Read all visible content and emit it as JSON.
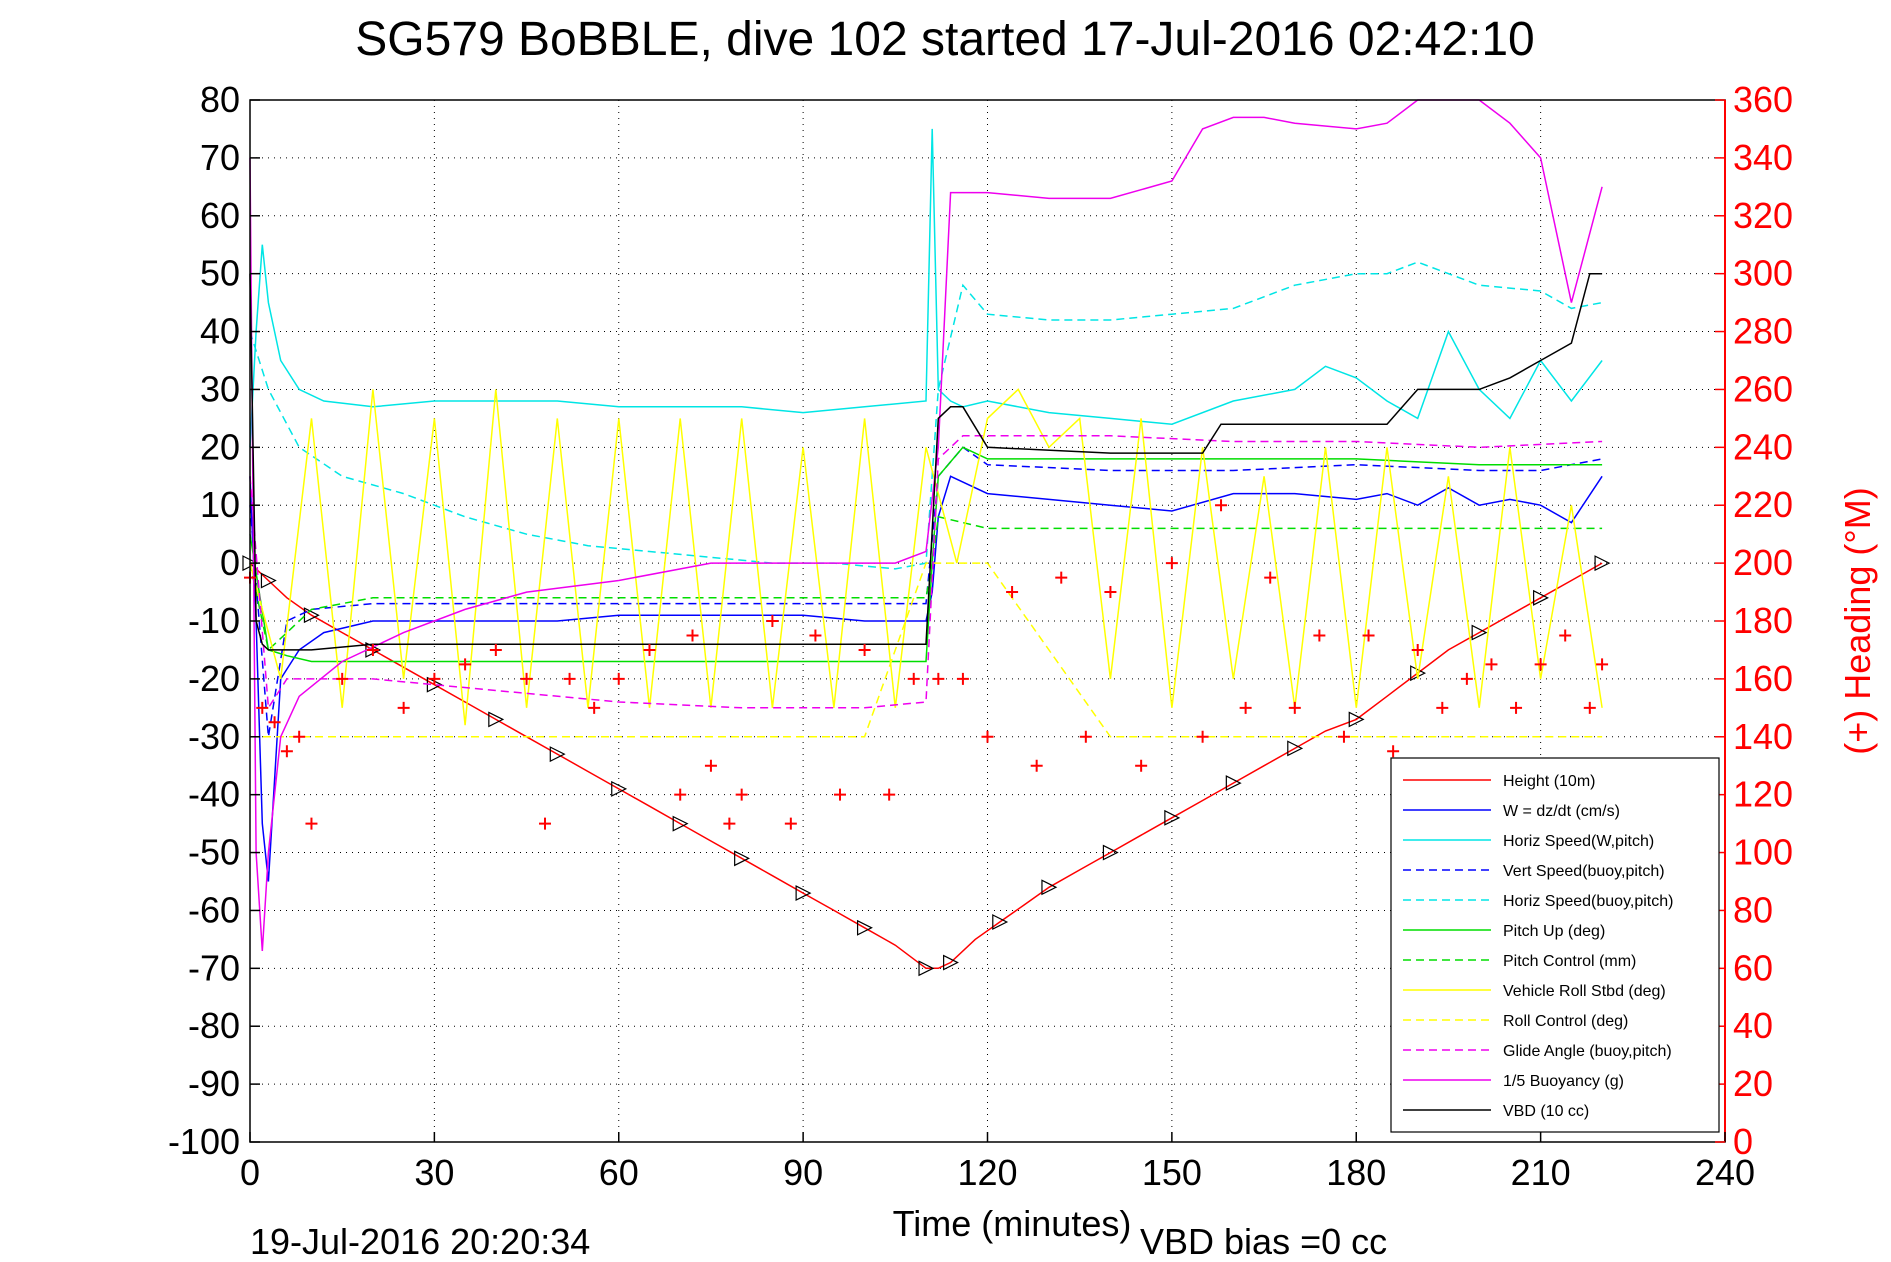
{
  "chart_data": {
    "type": "line",
    "title": "SG579 BoBBLE, dive 102 started 17-Jul-2016 02:42:10",
    "xlabel": "Time (minutes)",
    "ylabel_right": "(+) Heading (°M)",
    "xlim": [
      0,
      240
    ],
    "ylim": [
      -100,
      80
    ],
    "ylim_right": [
      0,
      360
    ],
    "x_ticks": [
      "0",
      "30",
      "60",
      "90",
      "120",
      "150",
      "180",
      "210",
      "240"
    ],
    "y_ticks": [
      "80",
      "70",
      "60",
      "50",
      "40",
      "30",
      "20",
      "10",
      "0",
      "-10",
      "-20",
      "-30",
      "-40",
      "-50",
      "-60",
      "-70",
      "-80",
      "-90",
      "-100"
    ],
    "y_ticks_right": [
      "360",
      "340",
      "320",
      "300",
      "280",
      "260",
      "240",
      "220",
      "200",
      "180",
      "160",
      "140",
      "120",
      "100",
      "80",
      "60",
      "40",
      "20",
      "0"
    ],
    "grid": true,
    "legend_position": "bottom-right",
    "footer_date": "19-Jul-2016 20:20:34",
    "footer_note": "VBD bias =0 cc",
    "series": [
      {
        "name": "Height (10m)",
        "color": "#ff0000",
        "style": "solid",
        "x": [
          0,
          1,
          3,
          6,
          10,
          15,
          20,
          25,
          30,
          35,
          40,
          45,
          50,
          55,
          60,
          65,
          70,
          75,
          80,
          85,
          90,
          95,
          100,
          105,
          110,
          112,
          114,
          118,
          122,
          126,
          130,
          135,
          140,
          145,
          150,
          155,
          160,
          165,
          170,
          175,
          180,
          185,
          190,
          195,
          200,
          205,
          210,
          215,
          220
        ],
        "y": [
          0,
          -1,
          -3,
          -6,
          -9,
          -12,
          -15,
          -18,
          -21,
          -24,
          -27,
          -30,
          -33,
          -36,
          -39,
          -42,
          -45,
          -48,
          -51,
          -54,
          -57,
          -60,
          -63,
          -66,
          -70,
          -70,
          -69,
          -65,
          -62,
          -59,
          -56,
          -53,
          -50,
          -47,
          -44,
          -41,
          -38,
          -35,
          -32,
          -29,
          -27,
          -23,
          -19,
          -15,
          -12,
          -9,
          -6,
          -3,
          0
        ]
      },
      {
        "name": "W = dz/dt (cm/s)",
        "color": "#0000ff",
        "style": "solid",
        "x": [
          0,
          1,
          2,
          3,
          5,
          8,
          12,
          20,
          30,
          40,
          50,
          60,
          70,
          80,
          90,
          100,
          110,
          111,
          112,
          114,
          116,
          120,
          130,
          140,
          150,
          160,
          170,
          180,
          185,
          190,
          195,
          200,
          205,
          210,
          215,
          220
        ],
        "y": [
          15,
          -10,
          -45,
          -55,
          -20,
          -15,
          -12,
          -10,
          -10,
          -10,
          -10,
          -9,
          -9,
          -9,
          -9,
          -10,
          -10,
          -5,
          8,
          15,
          14,
          12,
          11,
          10,
          9,
          12,
          12,
          11,
          12,
          10,
          13,
          10,
          11,
          10,
          7,
          15
        ]
      },
      {
        "name": "Horiz Speed(W,pitch)",
        "color": "#00e5e5",
        "style": "solid",
        "x": [
          0,
          1,
          2,
          3,
          5,
          8,
          12,
          20,
          30,
          40,
          50,
          60,
          70,
          80,
          90,
          100,
          110,
          111,
          112,
          114,
          116,
          120,
          130,
          140,
          150,
          160,
          170,
          175,
          180,
          185,
          190,
          195,
          200,
          205,
          210,
          215,
          220
        ],
        "y": [
          20,
          40,
          55,
          45,
          35,
          30,
          28,
          27,
          28,
          28,
          28,
          27,
          27,
          27,
          26,
          27,
          28,
          75,
          30,
          28,
          27,
          28,
          26,
          25,
          24,
          28,
          30,
          34,
          32,
          28,
          25,
          40,
          30,
          25,
          35,
          28,
          35
        ]
      },
      {
        "name": "Vert Speed(buoy,pitch)",
        "color": "#0000ff",
        "style": "dashed",
        "x": [
          0,
          3,
          6,
          10,
          20,
          30,
          50,
          70,
          90,
          110,
          112,
          116,
          120,
          140,
          160,
          180,
          200,
          210,
          220
        ],
        "y": [
          10,
          -30,
          -10,
          -8,
          -7,
          -7,
          -7,
          -7,
          -7,
          -7,
          15,
          20,
          17,
          16,
          16,
          17,
          16,
          16,
          18
        ]
      },
      {
        "name": "Horiz Speed(buoy,pitch)",
        "color": "#00e5e5",
        "style": "dashed",
        "x": [
          0,
          3,
          8,
          15,
          25,
          35,
          45,
          55,
          65,
          75,
          85,
          95,
          105,
          110,
          112,
          116,
          120,
          130,
          140,
          150,
          160,
          170,
          180,
          185,
          190,
          200,
          210,
          215,
          220
        ],
        "y": [
          40,
          30,
          20,
          15,
          12,
          8,
          5,
          3,
          2,
          1,
          0,
          0,
          -1,
          0,
          30,
          48,
          43,
          42,
          42,
          43,
          44,
          48,
          50,
          50,
          52,
          48,
          47,
          44,
          45
        ]
      },
      {
        "name": "Pitch Up (deg)",
        "color": "#00dd00",
        "style": "solid",
        "x": [
          0,
          3,
          6,
          10,
          20,
          40,
          60,
          80,
          100,
          110,
          111,
          112,
          116,
          120,
          140,
          160,
          180,
          200,
          220
        ],
        "y": [
          5,
          -15,
          -16,
          -17,
          -17,
          -17,
          -17,
          -17,
          -17,
          -17,
          0,
          15,
          20,
          18,
          18,
          18,
          18,
          17,
          17
        ]
      },
      {
        "name": "Pitch Control (mm)",
        "color": "#00dd00",
        "style": "dashed",
        "x": [
          0,
          3,
          6,
          10,
          20,
          40,
          60,
          80,
          100,
          110,
          111,
          112,
          116,
          120,
          140,
          160,
          180,
          200,
          220
        ],
        "y": [
          0,
          -15,
          -12,
          -8,
          -6,
          -6,
          -6,
          -6,
          -6,
          -6,
          0,
          8,
          7,
          6,
          6,
          6,
          6,
          6,
          6
        ]
      },
      {
        "name": "Vehicle Roll Stbd (deg)",
        "color": "#ffff00",
        "style": "solid",
        "x": [
          0,
          5,
          10,
          15,
          20,
          25,
          30,
          35,
          40,
          45,
          50,
          55,
          60,
          65,
          70,
          75,
          80,
          85,
          90,
          95,
          100,
          105,
          110,
          115,
          120,
          125,
          130,
          135,
          140,
          145,
          150,
          155,
          160,
          165,
          170,
          175,
          180,
          185,
          190,
          195,
          200,
          205,
          210,
          215,
          220
        ],
        "y": [
          0,
          -20,
          25,
          -25,
          30,
          -20,
          25,
          -28,
          30,
          -25,
          25,
          -25,
          25,
          -25,
          25,
          -25,
          25,
          -25,
          20,
          -25,
          25,
          -25,
          20,
          0,
          25,
          30,
          20,
          25,
          -20,
          25,
          -25,
          20,
          -20,
          15,
          -25,
          20,
          -25,
          20,
          -20,
          15,
          -25,
          20,
          -20,
          10,
          -25
        ]
      },
      {
        "name": "Roll Control (deg)",
        "color": "#ffff00",
        "style": "dashed",
        "x": [
          0,
          10,
          20,
          40,
          60,
          80,
          100,
          110,
          120,
          140,
          160,
          180,
          200,
          220
        ],
        "y": [
          -30,
          -30,
          -30,
          -30,
          -30,
          -30,
          -30,
          0,
          0,
          -30,
          -30,
          -30,
          -30,
          -30
        ]
      },
      {
        "name": "Glide Angle (buoy,pitch)",
        "color": "#ee00ee",
        "style": "dashed",
        "x": [
          0,
          3,
          6,
          10,
          20,
          40,
          60,
          80,
          100,
          110,
          112,
          116,
          120,
          140,
          160,
          180,
          200,
          220
        ],
        "y": [
          15,
          -25,
          -20,
          -20,
          -20,
          -22,
          -24,
          -25,
          -25,
          -24,
          18,
          22,
          22,
          22,
          21,
          21,
          20,
          21
        ]
      },
      {
        "name": "1/5 Buoyancy (g)",
        "color": "#ee00ee",
        "style": "solid",
        "x": [
          0,
          1,
          2,
          3,
          5,
          8,
          15,
          25,
          35,
          45,
          60,
          75,
          90,
          105,
          110,
          112,
          114,
          120,
          130,
          140,
          150,
          155,
          160,
          165,
          170,
          180,
          185,
          190,
          200,
          205,
          210,
          215,
          220
        ],
        "y": [
          70,
          -50,
          -67,
          -50,
          -30,
          -23,
          -17,
          -12,
          -8,
          -5,
          -3,
          0,
          0,
          0,
          2,
          20,
          64,
          64,
          63,
          63,
          66,
          75,
          77,
          77,
          76,
          75,
          76,
          80,
          80,
          76,
          70,
          45,
          65
        ]
      },
      {
        "name": "VBD (10 cc)",
        "color": "#000000",
        "style": "solid",
        "x": [
          0,
          1,
          2,
          3,
          5,
          10,
          20,
          40,
          60,
          80,
          100,
          110,
          112,
          114,
          116,
          120,
          140,
          150,
          155,
          158,
          165,
          175,
          185,
          190,
          195,
          200,
          205,
          210,
          215,
          218,
          220
        ],
        "y": [
          50,
          -10,
          -14,
          -15,
          -15,
          -15,
          -14,
          -14,
          -14,
          -14,
          -14,
          -14,
          25,
          27,
          27,
          20,
          19,
          19,
          19,
          24,
          24,
          24,
          24,
          30,
          30,
          30,
          32,
          35,
          38,
          50,
          50
        ]
      },
      {
        "name": "Heading",
        "color": "#ff0000",
        "style": "markers",
        "axis": "right",
        "x": [
          0,
          2,
          4,
          6,
          8,
          10,
          15,
          20,
          25,
          30,
          35,
          40,
          45,
          48,
          52,
          56,
          60,
          65,
          70,
          72,
          75,
          78,
          80,
          85,
          88,
          92,
          96,
          100,
          104,
          108,
          112,
          116,
          120,
          124,
          128,
          132,
          136,
          140,
          145,
          150,
          155,
          158,
          162,
          166,
          170,
          174,
          178,
          182,
          186,
          190,
          194,
          198,
          202,
          206,
          210,
          214,
          218,
          220
        ],
        "y": [
          195,
          150,
          145,
          135,
          140,
          110,
          160,
          170,
          150,
          160,
          165,
          170,
          160,
          110,
          160,
          150,
          160,
          170,
          120,
          175,
          130,
          110,
          120,
          180,
          110,
          175,
          120,
          170,
          120,
          160,
          160,
          160,
          140,
          190,
          130,
          195,
          140,
          190,
          130,
          200,
          140,
          220,
          150,
          195,
          150,
          175,
          140,
          175,
          135,
          170,
          150,
          160,
          165,
          150,
          165,
          175,
          150,
          165
        ]
      }
    ]
  }
}
